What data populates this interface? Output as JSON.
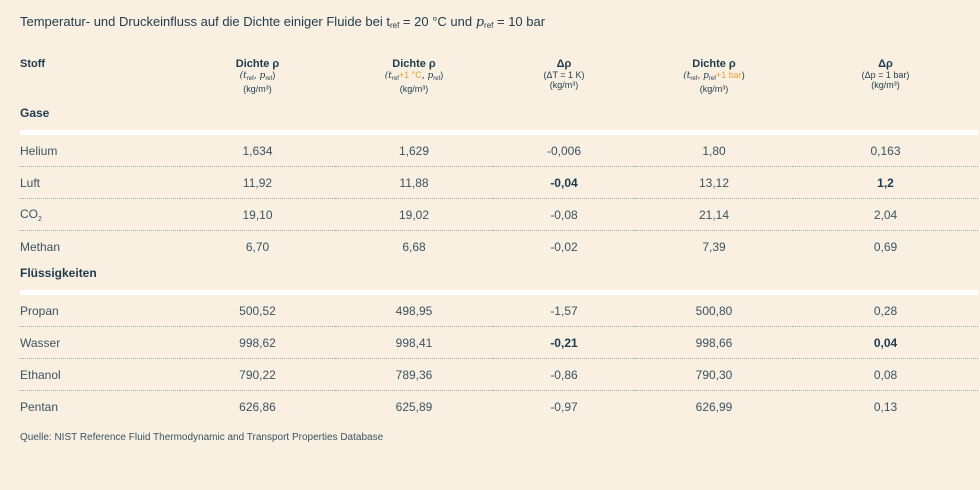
{
  "title": {
    "text": "Temperatur- und Druckeinfluss auf die Dichte einiger Fluide bei t",
    "t_sub": "ref",
    "t_value": " = 20 °C und ",
    "p_symbol": "p",
    "p_sub": "ref",
    "p_value": " = 10 bar"
  },
  "columns": [
    {
      "label": "Stoff"
    },
    {
      "label": "Dichte ρ",
      "line2": {
        "a": "(t",
        "a_sub": "ref",
        "b": ", p",
        "b_sub": "ref",
        "c": ")",
        "accent_a": "",
        "accent_b": ""
      },
      "unit": "(kg/m³)"
    },
    {
      "label": "Dichte ρ",
      "line2": {
        "a": "(t",
        "a_sub": "ref",
        "accent_a": "+1 °C",
        "b": ", p",
        "b_sub": "ref",
        "accent_b": "",
        "c": ")"
      },
      "unit": "(kg/m³)"
    },
    {
      "label": "Δρ",
      "line2_text": "(ΔT = 1 K)",
      "unit": "(kg/m³)"
    },
    {
      "label": "Dichte ρ",
      "line2": {
        "a": "(t",
        "a_sub": "ref",
        "accent_a": "",
        "b": ", p",
        "b_sub": "ref",
        "accent_b": "+1 bar",
        "c": ")"
      },
      "unit": "(kg/m³)"
    },
    {
      "label": "Δρ",
      "line2_text": "(Δp = 1 bar)",
      "unit": "(kg/m³)"
    }
  ],
  "groups": [
    {
      "name": "Gase",
      "rows": [
        {
          "name": "Helium",
          "sub": "",
          "v1": "1,634",
          "v2": "1,629",
          "v3": "-0,006",
          "v4": "1,80",
          "v5": "0,163",
          "b3": false,
          "b5": false
        },
        {
          "name": "Luft",
          "sub": "",
          "v1": "11,92",
          "v2": "11,88",
          "v3": "-0,04",
          "v4": "13,12",
          "v5": "1,2",
          "b3": true,
          "b5": true
        },
        {
          "name": "CO",
          "sub": "2",
          "v1": "19,10",
          "v2": "19,02",
          "v3": "-0,08",
          "v4": "21,14",
          "v5": "2,04",
          "b3": false,
          "b5": false
        },
        {
          "name": "Methan",
          "sub": "",
          "v1": "6,70",
          "v2": "6,68",
          "v3": "-0,02",
          "v4": "7,39",
          "v5": "0,69",
          "b3": false,
          "b5": false
        }
      ]
    },
    {
      "name": "Flüssigkeiten",
      "rows": [
        {
          "name": "Propan",
          "sub": "",
          "v1": "500,52",
          "v2": "498,95",
          "v3": "-1,57",
          "v4": "500,80",
          "v5": "0,28",
          "b3": false,
          "b5": false
        },
        {
          "name": "Wasser",
          "sub": "",
          "v1": "998,62",
          "v2": "998,41",
          "v3": "-0,21",
          "v4": "998,66",
          "v5": "0,04",
          "b3": true,
          "b5": true
        },
        {
          "name": "Ethanol",
          "sub": "",
          "v1": "790,22",
          "v2": "789,36",
          "v3": "-0,86",
          "v4": "790,30",
          "v5": "0,08",
          "b3": false,
          "b5": false
        },
        {
          "name": "Pentan",
          "sub": "",
          "v1": "626,86",
          "v2": "625,89",
          "v3": "-0,97",
          "v4": "626,99",
          "v5": "0,13",
          "b3": false,
          "b5": false
        }
      ]
    }
  ],
  "source": "Quelle: NIST Reference Fluid Thermodynamic and Transport Properties Database",
  "colors": {
    "background": "#f9f0e1",
    "text": "#1e3a4e",
    "accent": "#e3a23a"
  }
}
